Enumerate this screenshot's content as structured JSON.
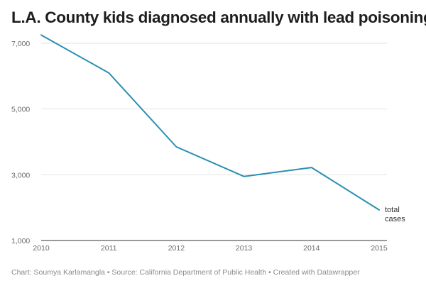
{
  "chart_data": {
    "type": "line",
    "title": "L.A. County kids diagnosed annually with lead poisoning",
    "xlabel": "",
    "ylabel": "",
    "x": [
      2010,
      2011,
      2012,
      2013,
      2014,
      2015
    ],
    "series": [
      {
        "name": "total cases",
        "values": [
          7250,
          6100,
          3850,
          2950,
          3220,
          1930
        ]
      }
    ],
    "xlim": [
      2010,
      2015
    ],
    "ylim": [
      1000,
      7200
    ],
    "yticks": [
      1000,
      3000,
      5000,
      7000
    ],
    "ytick_labels": [
      "1,000",
      "3,000",
      "5,000",
      "7,000"
    ],
    "xtick_labels": [
      "2010",
      "2011",
      "2012",
      "2013",
      "2014",
      "2015"
    ],
    "series_label_lines": [
      "total",
      "cases"
    ],
    "grid": true,
    "line_color": "#2a8fb0"
  },
  "footer": "Chart: Soumya Karlamangla • Source: California Department of Public Health • Created with Datawrapper"
}
